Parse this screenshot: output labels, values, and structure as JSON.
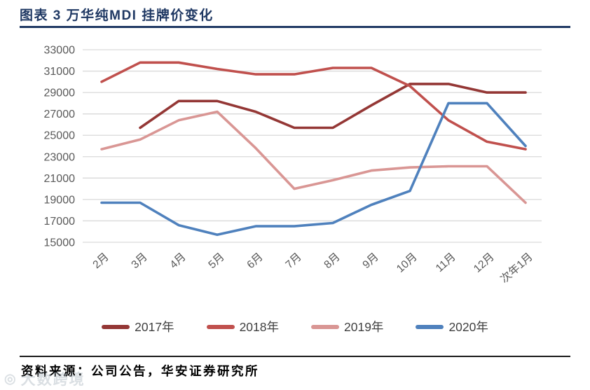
{
  "title": "图表 3 万华纯MDI 挂牌价变化",
  "source_note": "资料来源：公司公告，华安证券研究所",
  "watermark": "大数跨境",
  "colors": {
    "title_navy": "#1f3863",
    "axis_text": "#595959",
    "gridline": "#d9d9d9",
    "series_2017": "#943735",
    "series_2018": "#c0504d",
    "series_2019": "#d99694",
    "series_2020": "#4f81bd"
  },
  "chart_data": {
    "type": "line",
    "title": "图表 3 万华纯MDI 挂牌价变化",
    "categories": [
      "2月",
      "3月",
      "4月",
      "5月",
      "6月",
      "7月",
      "8月",
      "9月",
      "10月",
      "11月",
      "12月",
      "次年1月"
    ],
    "series": [
      {
        "name": "2017年",
        "color": "#943735",
        "values": [
          null,
          25700,
          28200,
          28200,
          27200,
          25700,
          25700,
          27800,
          29800,
          29800,
          29000,
          29000
        ]
      },
      {
        "name": "2018年",
        "color": "#c0504d",
        "values": [
          30000,
          31800,
          31800,
          31200,
          30700,
          30700,
          31300,
          31300,
          29600,
          26400,
          24400,
          23700
        ]
      },
      {
        "name": "2019年",
        "color": "#d99694",
        "values": [
          23700,
          24600,
          26400,
          27200,
          23800,
          20000,
          20800,
          21700,
          22000,
          22100,
          22100,
          18700
        ]
      },
      {
        "name": "2020年",
        "color": "#4f81bd",
        "values": [
          18700,
          18700,
          16600,
          15700,
          16500,
          16500,
          16800,
          18500,
          19800,
          28000,
          28000,
          24000
        ]
      }
    ],
    "ylim": [
      15000,
      33000
    ],
    "ytick_step": 2000,
    "yticks": [
      15000,
      17000,
      19000,
      21000,
      23000,
      25000,
      27000,
      29000,
      31000,
      33000
    ],
    "grid": "horizontal-only",
    "legend_position": "bottom",
    "x_label_rotation_deg": -42
  }
}
